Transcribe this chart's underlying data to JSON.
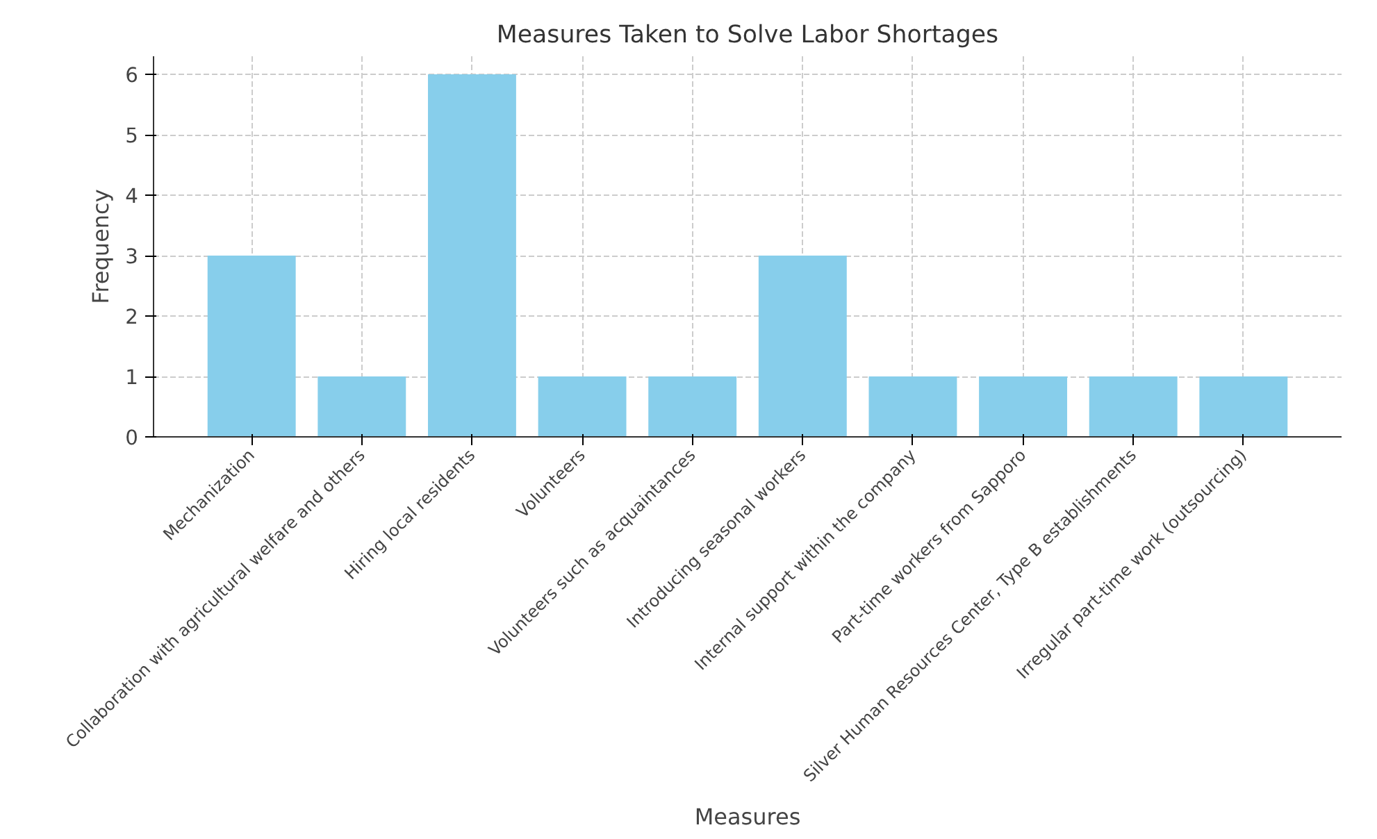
{
  "chart_data": {
    "type": "bar",
    "title": "Measures Taken to Solve Labor Shortages",
    "xlabel": "Measures",
    "ylabel": "Frequency",
    "categories": [
      "Mechanization",
      "Collaboration with agricultural welfare and others",
      "Hiring local residents",
      "Volunteers",
      "Volunteers such as acquaintances",
      "Introducing seasonal workers",
      "Internal support within the company",
      "Part-time workers from Sapporo",
      "Silver Human Resources Center, Type B establishments",
      "Irregular part-time work (outsourcing)"
    ],
    "values": [
      3,
      1,
      6,
      1,
      1,
      3,
      1,
      1,
      1,
      1
    ],
    "color": "#87ceeb",
    "ylim": [
      0,
      6.3
    ],
    "yticks": [
      0,
      1,
      2,
      3,
      4,
      5,
      6
    ],
    "grid": true
  }
}
